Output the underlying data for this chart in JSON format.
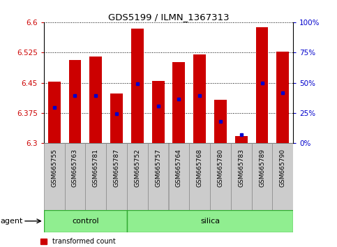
{
  "title": "GDS5199 / ILMN_1367313",
  "samples": [
    "GSM665755",
    "GSM665763",
    "GSM665781",
    "GSM665787",
    "GSM665752",
    "GSM665757",
    "GSM665764",
    "GSM665768",
    "GSM665780",
    "GSM665783",
    "GSM665789",
    "GSM665790"
  ],
  "groups": [
    "control",
    "control",
    "control",
    "control",
    "silica",
    "silica",
    "silica",
    "silica",
    "silica",
    "silica",
    "silica",
    "silica"
  ],
  "bar_values": [
    6.453,
    6.507,
    6.515,
    6.423,
    6.585,
    6.455,
    6.502,
    6.52,
    6.407,
    6.318,
    6.587,
    6.527
  ],
  "percentile_values": [
    6.388,
    6.418,
    6.418,
    6.373,
    6.448,
    6.393,
    6.41,
    6.418,
    6.355,
    6.322,
    6.45,
    6.425
  ],
  "ymin": 6.3,
  "ymax": 6.6,
  "yticks_left": [
    6.3,
    6.375,
    6.45,
    6.525,
    6.6
  ],
  "yticks_right_vals": [
    0,
    25,
    50,
    75,
    100
  ],
  "bar_color": "#cc0000",
  "dot_color": "#0000cc",
  "group_bg_color": "#90ee90",
  "control_count": 4,
  "silica_count": 8,
  "bar_width": 0.6,
  "tick_label_color_left": "#cc0000",
  "tick_label_color_right": "#0000cc",
  "sample_box_color": "#cccccc",
  "group_edge_color": "#33aa33"
}
